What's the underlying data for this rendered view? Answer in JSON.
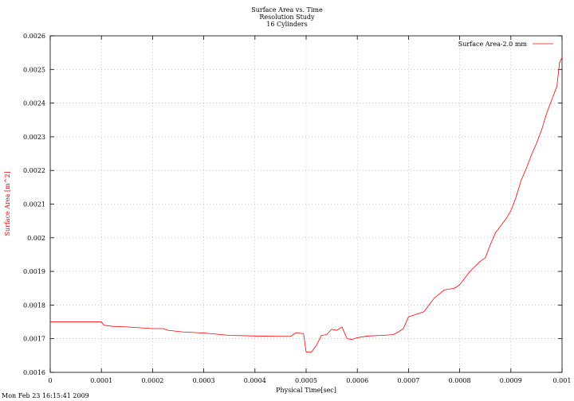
{
  "chart_data": {
    "type": "line",
    "title": [
      "Surface Area vs. Time",
      "Resolution Study",
      "16 Cylinders"
    ],
    "xlabel": "Physical Time[sec]",
    "ylabel": "Surface Area  [m^2]",
    "xlim": [
      0,
      0.001
    ],
    "ylim": [
      0.0016,
      0.0026
    ],
    "grid": true,
    "legend_position": "top-right",
    "timestamp": "Mon Feb 23 16:15:41 2009",
    "x_ticks": [
      {
        "value": 0,
        "label": "0"
      },
      {
        "value": 0.0001,
        "label": "0.0001"
      },
      {
        "value": 0.0002,
        "label": "0.0002"
      },
      {
        "value": 0.0003,
        "label": "0.0003"
      },
      {
        "value": 0.0004,
        "label": "0.0004"
      },
      {
        "value": 0.0005,
        "label": "0.0005"
      },
      {
        "value": 0.0006,
        "label": "0.0006"
      },
      {
        "value": 0.0007,
        "label": "0.0007"
      },
      {
        "value": 0.0008,
        "label": "0.0008"
      },
      {
        "value": 0.0009,
        "label": "0.0009"
      },
      {
        "value": 0.001,
        "label": "0.001"
      }
    ],
    "y_ticks": [
      {
        "value": 0.0016,
        "label": "0.0016"
      },
      {
        "value": 0.0017,
        "label": "0.0017"
      },
      {
        "value": 0.0018,
        "label": "0.0018"
      },
      {
        "value": 0.0019,
        "label": "0.0019"
      },
      {
        "value": 0.002,
        "label": "0.002"
      },
      {
        "value": 0.0021,
        "label": "0.0021"
      },
      {
        "value": 0.0022,
        "label": "0.0022"
      },
      {
        "value": 0.0023,
        "label": "0.0023"
      },
      {
        "value": 0.0024,
        "label": "0.0024"
      },
      {
        "value": 0.0025,
        "label": "0.0025"
      },
      {
        "value": 0.0026,
        "label": "0.0026"
      }
    ],
    "series": [
      {
        "name": "Surface Area-2.0 mm",
        "color": "#ff0000",
        "x": [
          0,
          0.0001,
          0.000105,
          0.00012,
          0.00015,
          0.0002,
          0.00022,
          0.00023,
          0.00026,
          0.0003,
          0.00035,
          0.0004,
          0.00045,
          0.00047,
          0.00048,
          0.000495,
          0.0005,
          0.00051,
          0.00052,
          0.00053,
          0.00054,
          0.00055,
          0.00056,
          0.00057,
          0.00058,
          0.00059,
          0.0006,
          0.00062,
          0.00065,
          0.00067,
          0.00068,
          0.00069,
          0.0007,
          0.00071,
          0.00073,
          0.00075,
          0.00077,
          0.00079,
          0.0008,
          0.00082,
          0.00084,
          0.00085,
          0.00086,
          0.00087,
          0.00088,
          0.00089,
          0.0009,
          0.00091,
          0.00092,
          0.00093,
          0.00094,
          0.00095,
          0.00096,
          0.00097,
          0.00098,
          0.00099,
          0.000995,
          0.001
        ],
        "y": [
          0.00175,
          0.00175,
          0.00174,
          0.001737,
          0.001735,
          0.00173,
          0.00173,
          0.001725,
          0.00172,
          0.001717,
          0.00171,
          0.001708,
          0.001707,
          0.001707,
          0.001718,
          0.001715,
          0.00166,
          0.00166,
          0.00168,
          0.00171,
          0.001712,
          0.001728,
          0.001725,
          0.001735,
          0.0017,
          0.001698,
          0.001703,
          0.001708,
          0.00171,
          0.001712,
          0.00172,
          0.00173,
          0.001765,
          0.00177,
          0.00178,
          0.00182,
          0.001845,
          0.00185,
          0.00186,
          0.0019,
          0.00193,
          0.00194,
          0.00198,
          0.002015,
          0.002035,
          0.002055,
          0.00208,
          0.00212,
          0.00217,
          0.002205,
          0.002245,
          0.00228,
          0.00232,
          0.00237,
          0.00241,
          0.00245,
          0.00252,
          0.002535
        ]
      }
    ]
  }
}
